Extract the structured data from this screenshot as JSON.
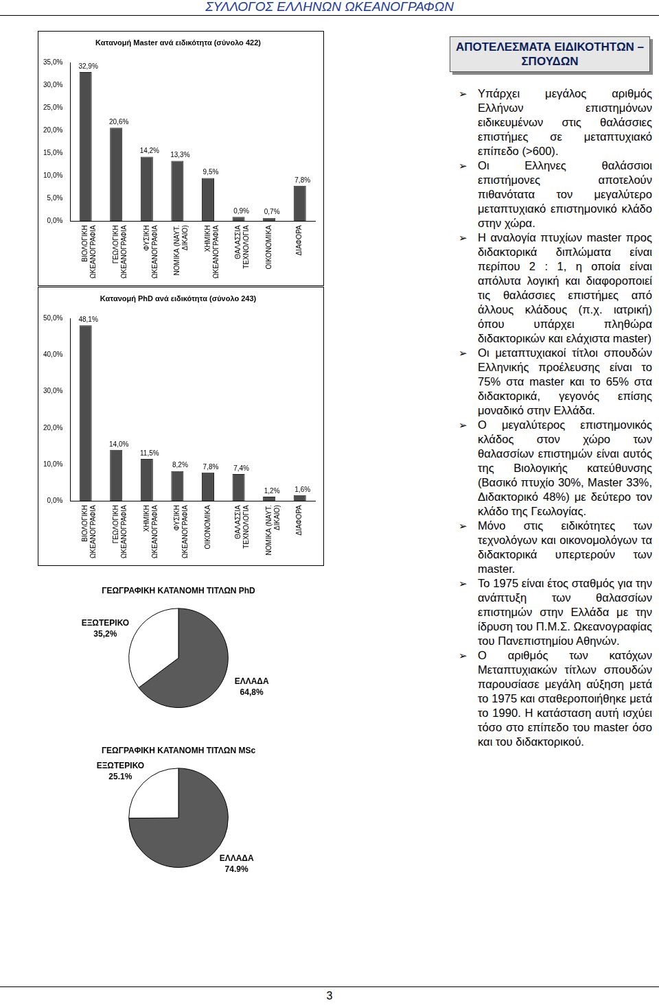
{
  "chart_data": [
    {
      "type": "bar",
      "title": "Κατανομή Master ανά ειδικότητα (σύνολο 422)",
      "categories": [
        "ΒΙΟΛΟΓΙΚΗ\nΩΚΕΑΝΟΓΡΑΦΙΑ",
        "ΓΕΩΛΟΓΙΚΗ\nΩΚΕΑΝΟΓΡΑΦΙΑ",
        "ΦΥΣΙΚΗ\nΩΚΕΑΝΟΓΡΑΦΙΑ",
        "ΝΟΜΙΚΑ (ΝΑΥΤ.\nΔΙΚΑΙΟ)",
        "ΧΗΜΙΚΗ\nΩΚΕΑΝΟΓΡΑΦΙΑ",
        "ΘΑΛΑΣΣΙΑ\nΤΕΧΝΟΛΟΓΙΑ",
        "ΟΙΚΟΝΟΜΙΚΑ",
        "ΔΙΑΦΟΡΑ"
      ],
      "values": [
        32.9,
        20.6,
        14.2,
        13.3,
        9.5,
        0.9,
        0.7,
        7.8
      ],
      "value_labels": [
        "32,9%",
        "20,6%",
        "14,2%",
        "13,3%",
        "9,5%",
        "0,9%",
        "0,7%",
        "7,8%"
      ],
      "color": "#4d4d4d",
      "ylim": [
        0,
        35
      ],
      "yticks": [
        {
          "value": 0,
          "label": "0,0%"
        },
        {
          "value": 5,
          "label": "5,0%"
        },
        {
          "value": 10,
          "label": "10,0%"
        },
        {
          "value": 15,
          "label": "15,0%"
        },
        {
          "value": 20,
          "label": "20,0%"
        },
        {
          "value": 25,
          "label": "25,0%"
        },
        {
          "value": 30,
          "label": "30,0%"
        },
        {
          "value": 35,
          "label": "35,0%"
        }
      ],
      "grid": false,
      "data_labels": true
    },
    {
      "type": "bar",
      "title": "Κατανομή PhD ανά ειδικότητα (σύνολο 243)",
      "categories": [
        "ΒΙΟΛΟΓΙΚΗ\nΩΚΕΑΝΟΓΡΑΦΙΑ",
        "ΓΕΩΛΟΓΙΚΗ\nΩΚΕΑΝΟΓΡΑΦΙΑ",
        "ΧΗΜΙΚΗ\nΩΚΕΑΝΟΓΡΑΦΙΑ",
        "ΦΥΣΙΚΗ\nΩΚΕΑΝΟΓΡΑΦΙΑ",
        "ΟΙΚΟΝΟΜΙΚΑ",
        "ΘΑΛΑΣΣΙΑ\nΤΕΧΝΟΛΟΓΙΑ",
        "ΝΟΜΙΚΑ (ΝΑΥΤ.\nΔΙΚΑΙΟ)",
        "ΔΙΑΦΟΡΑ"
      ],
      "values": [
        48.1,
        14.0,
        11.5,
        8.2,
        7.8,
        7.4,
        1.2,
        1.6
      ],
      "value_labels": [
        "48,1%",
        "14,0%",
        "11,5%",
        "8,2%",
        "7,8%",
        "7,4%",
        "1,2%",
        "1,6%"
      ],
      "color": "#4d4d4d",
      "ylim": [
        0,
        50
      ],
      "yticks": [
        {
          "value": 0,
          "label": "0,0%"
        },
        {
          "value": 10,
          "label": "10,0%"
        },
        {
          "value": 20,
          "label": "20,0%"
        },
        {
          "value": 30,
          "label": "30,0%"
        },
        {
          "value": 40,
          "label": "40,0%"
        },
        {
          "value": 50,
          "label": "50,0%"
        }
      ],
      "grid": false,
      "data_labels": true
    },
    {
      "type": "pie",
      "title": "ΓΕΩΓΡΑΦΙΚΗ ΚΑΤΑΝΟΜΗ ΤΙΤΛΩΝ PhD",
      "categories": [
        "ΕΛΛΑΔΑ",
        "ΕΞΩΤΕΡΙΚΟ"
      ],
      "values": [
        64.8,
        35.2
      ],
      "value_labels": [
        "64,8%",
        "35,2%"
      ],
      "colors": [
        "#5a5a5a",
        "#ffffff"
      ],
      "data_labels": true
    },
    {
      "type": "pie",
      "title": "ΓΕΩΓΡΑΦΙΚΗ ΚΑΤΑΝΟΜΗ ΤΙΤΛΩΝ MSc",
      "categories": [
        "ΕΛΛΑΔΑ",
        "ΕΞΩΤΕΡΙΚΟ"
      ],
      "values": [
        74.9,
        25.1
      ],
      "value_labels": [
        "74.9%",
        "25.1%"
      ],
      "colors": [
        "#5a5a5a",
        "#ffffff"
      ],
      "data_labels": true
    }
  ],
  "document": {
    "header": "ΣΥΛΛΟΓΟΣ ΕΛΛΗΝΩΝ ΩΚΕΑΝΟΓΡΑΦΩΝ",
    "sidebar": {
      "title": "ΑΠΟΤΕΛΕΣΜΑΤΑ ΕΙΔΙΚΟΤΗΤΩΝ – ΣΠΟΥΔΩΝ",
      "bullets": [
        "Υπάρχει μεγάλος αριθμός Ελλήνων επιστημόνων ειδικευμένων στις θαλάσσιες επιστήμες σε μεταπτυχιακό επίπεδο (>600).",
        "Οι Ελληνες θαλάσσιοι επιστήμονες αποτελούν πιθανότατα τον μεγαλύτερο μεταπτυχιακό επιστημονικό κλάδο στην χώρα.",
        "Η αναλογία πτυχίων master προς διδακτορικά διπλώματα είναι περίπου 2 : 1, η οποία είναι απόλυτα λογική και διαφοροποιεί τις θαλάσσιες επιστήμες από άλλους κλάδους (π.χ. ιατρική) όπου υπάρχει πληθώρα διδακτορικών και ελάχιστα master)",
        "Οι μεταπτυχιακοί τίτλοι σπουδών Ελληνικής προέλευσης είναι το 75% στα master και το 65% στα διδακτορικά, γεγονός επίσης μοναδικό στην Ελλάδα.",
        "Ο μεγαλύτερος επιστημονικός κλάδος στον χώρο των θαλασσίων επιστημών είναι αυτός της Βιολογικής κατεύθυνσης (Βασικό πτυχίο 30%, Master 33%, Διδακτορικό 48%) με δεύτερο τον κλάδο της Γεωλογίας.",
        "Μόνο στις ειδικότητες των τεχνολόγων και οικονομολόγων τα διδακτορικά υπερτερούν των master.",
        "Το 1975 είναι έτος σταθμός για την ανάπτυξη των θαλασσίων επιστημών στην Ελλάδα με την ίδρυση του Π.Μ.Σ. Ωκεανογραφίας του Πανεπιστημίου Αθηνών.",
        "Ο αριθμός των κατόχων Μεταπτυχιακών τίτλων σπουδών παρουσίασε μεγάλη αύξηση μετά το 1975 και σταθεροποιήθηκε μετά το 1990. Η κατάσταση αυτή ισχύει τόσο στο επίπεδο του master όσο και του διδακτορικού."
      ]
    },
    "page_number": "3"
  }
}
